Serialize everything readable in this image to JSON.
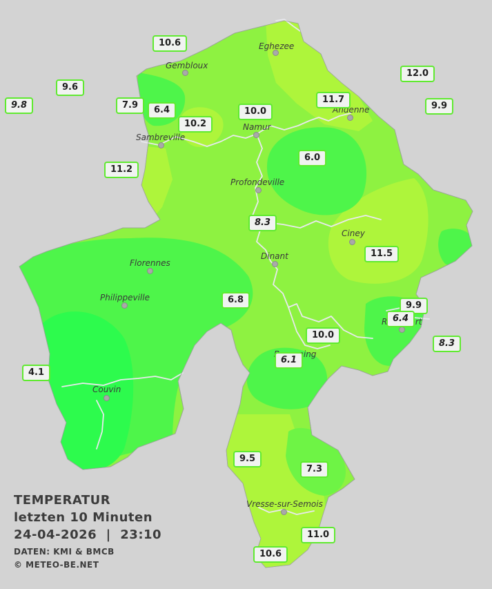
{
  "legend": {
    "title": "TEMPERATUR",
    "subtitle": "letzten 10 Minuten",
    "datetime": "24-04-2026  |  23:10",
    "source": "DATEN: KMI & BMCB",
    "copyright": "© METEO-BE.NET"
  },
  "cities": [
    {
      "name": "Eghezee"
    },
    {
      "name": "Gembloux"
    },
    {
      "name": "Andenne"
    },
    {
      "name": "Namur"
    },
    {
      "name": "Sambreville"
    },
    {
      "name": "Profondeville"
    },
    {
      "name": "Ciney"
    },
    {
      "name": "Dinant"
    },
    {
      "name": "Florennes"
    },
    {
      "name": "Philippeville"
    },
    {
      "name": "Rochefort"
    },
    {
      "name": "Beauraing"
    },
    {
      "name": "Couvin"
    },
    {
      "name": "Vresse-sur-Semois"
    }
  ],
  "stations": [
    {
      "value": "10.6"
    },
    {
      "value": "12.0"
    },
    {
      "value": "9.6"
    },
    {
      "value": "9.8"
    },
    {
      "value": "11.7"
    },
    {
      "value": "9.9"
    },
    {
      "value": "7.9"
    },
    {
      "value": "6.4"
    },
    {
      "value": "10.0"
    },
    {
      "value": "10.2"
    },
    {
      "value": "6.0"
    },
    {
      "value": "11.2"
    },
    {
      "value": "8.3"
    },
    {
      "value": "11.5"
    },
    {
      "value": "6.8"
    },
    {
      "value": "9.9"
    },
    {
      "value": "6.4"
    },
    {
      "value": "10.0"
    },
    {
      "value": "8.3"
    },
    {
      "value": "6.1"
    },
    {
      "value": "4.1"
    },
    {
      "value": "9.5"
    },
    {
      "value": "7.3"
    },
    {
      "value": "11.0"
    },
    {
      "value": "10.6"
    }
  ],
  "colors": {
    "background": "#d3d3d3",
    "land_base": "#8ef241",
    "cool": "#4ef54a",
    "coldest": "#2dfb4d",
    "warm": "#aef53b",
    "label_border": "#5fea2f",
    "river": "#e9e9ee"
  }
}
